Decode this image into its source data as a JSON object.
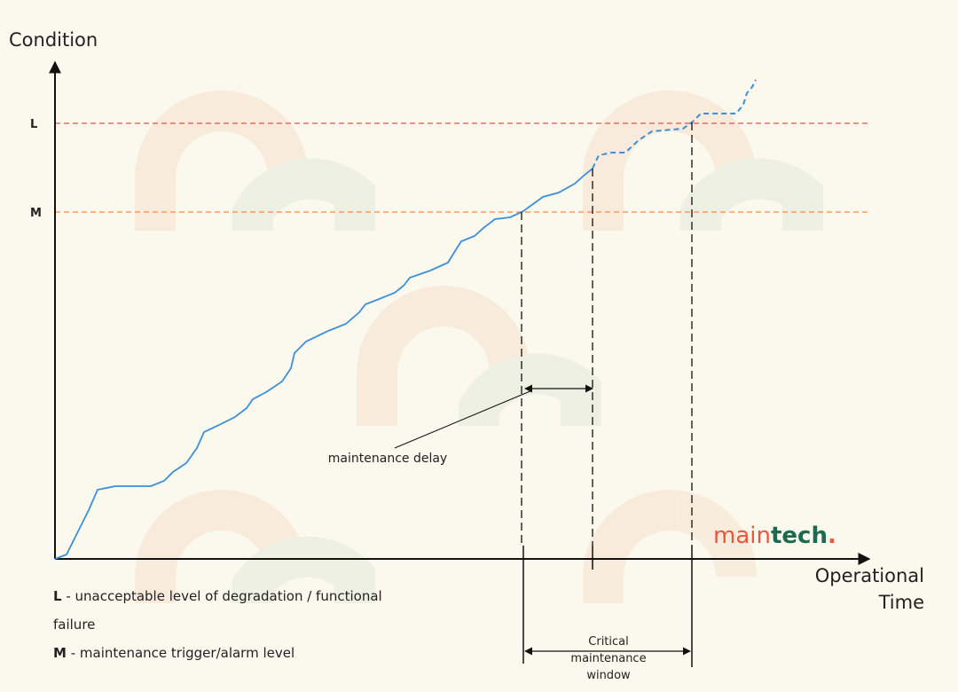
{
  "axes": {
    "y_label": "Condition",
    "x_label": [
      "Operational",
      "Time"
    ]
  },
  "levels": {
    "L": "L",
    "M": "M"
  },
  "annotations": {
    "maintenance_delay": "maintenance delay",
    "critical_window": [
      "Critical",
      "maintenance",
      "window"
    ]
  },
  "logo": {
    "part1": "main",
    "part2": "tech",
    "dot": "."
  },
  "legend": [
    {
      "key": "L",
      "lines": [
        " - unacceptable level of degradation / functional",
        "failure"
      ]
    },
    {
      "key": "M",
      "lines": [
        " - maintenance trigger/alarm level"
      ]
    }
  ]
}
